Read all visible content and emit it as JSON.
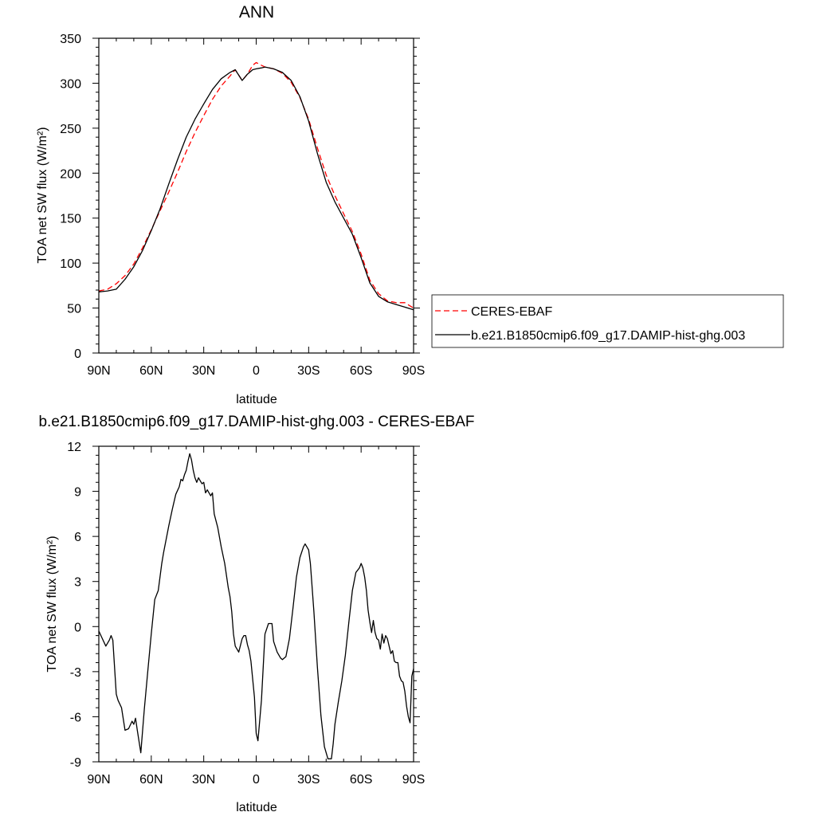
{
  "chart_data": [
    {
      "type": "line",
      "title": "ANN",
      "xlabel": "latitude",
      "ylabel": "TOA net SW flux (W/m²)",
      "xlim": [
        90,
        -90
      ],
      "ylim": [
        0,
        350
      ],
      "x_ticks": [
        90,
        60,
        30,
        0,
        -30,
        -60,
        -90
      ],
      "x_tick_labels": [
        "90N",
        "60N",
        "30N",
        "0",
        "30S",
        "60S",
        "90S"
      ],
      "y_ticks": [
        0,
        50,
        100,
        150,
        200,
        250,
        300,
        350
      ],
      "legend": "right",
      "series": [
        {
          "name": "CERES-EBAF",
          "color": "#ff0000",
          "dash": "dashed",
          "x": [
            90,
            85,
            80,
            75,
            70,
            65,
            60,
            55,
            50,
            45,
            40,
            35,
            30,
            25,
            20,
            15,
            12,
            8,
            5,
            2,
            0,
            -3,
            -5,
            -10,
            -15,
            -20,
            -25,
            -30,
            -35,
            -40,
            -45,
            -50,
            -55,
            -60,
            -65,
            -70,
            -75,
            -80,
            -85,
            -90
          ],
          "values": [
            69,
            71,
            77,
            86,
            99,
            117,
            137,
            158,
            179,
            201,
            224,
            245,
            264,
            282,
            297,
            308,
            315,
            303,
            310,
            320,
            323,
            320,
            318,
            316,
            311,
            301,
            284,
            260,
            228,
            198,
            175,
            155,
            135,
            110,
            81,
            66,
            58,
            56,
            56,
            50
          ]
        },
        {
          "name": "b.e21.B1850cmip6.f09_g17.DAMIP-hist-ghg.003",
          "color": "#000000",
          "dash": "solid",
          "x": [
            90,
            85,
            80,
            75,
            70,
            65,
            60,
            55,
            50,
            45,
            40,
            35,
            30,
            25,
            20,
            15,
            12,
            8,
            5,
            2,
            0,
            -3,
            -5,
            -10,
            -15,
            -20,
            -25,
            -30,
            -35,
            -40,
            -45,
            -50,
            -55,
            -60,
            -65,
            -70,
            -75,
            -80,
            -85,
            -90
          ],
          "values": [
            68,
            69,
            71,
            82,
            96,
            114,
            136,
            160,
            188,
            215,
            240,
            260,
            277,
            293,
            305,
            312,
            315,
            303,
            310,
            315,
            316,
            317,
            318,
            316,
            312,
            303,
            285,
            258,
            222,
            190,
            168,
            150,
            132,
            106,
            78,
            63,
            57,
            54,
            51,
            48
          ]
        }
      ]
    },
    {
      "type": "line",
      "title": "b.e21.B1850cmip6.f09_g17.DAMIP-hist-ghg.003 - CERES-EBAF",
      "xlabel": "latitude",
      "ylabel": "TOA net SW flux (W/m²)",
      "xlim": [
        90,
        -90
      ],
      "ylim": [
        -9,
        12
      ],
      "x_ticks": [
        90,
        60,
        30,
        0,
        -30,
        -60,
        -90
      ],
      "x_tick_labels": [
        "90N",
        "60N",
        "30N",
        "0",
        "30S",
        "60S",
        "90S"
      ],
      "y_ticks": [
        -9,
        -6,
        -3,
        0,
        3,
        6,
        9,
        12
      ],
      "series": [
        {
          "color": "#000000",
          "dash": "solid",
          "x": [
            90,
            88,
            86,
            84,
            83,
            82,
            80,
            79,
            77,
            75,
            73,
            71,
            70,
            69,
            68,
            66,
            64,
            62,
            60,
            58,
            56,
            54,
            53,
            50,
            48,
            46,
            44,
            43,
            42,
            41,
            40,
            39,
            38,
            37,
            36,
            35,
            34,
            33,
            32,
            31,
            30,
            29,
            28,
            26,
            25,
            24,
            22,
            20,
            18,
            16,
            15,
            14,
            13,
            12,
            10,
            8,
            7,
            6,
            5,
            4,
            3,
            1,
            0,
            -1,
            -3,
            -5,
            -7,
            -9,
            -10,
            -12,
            -14,
            -15,
            -17,
            -19,
            -21,
            -23,
            -25,
            -27,
            -28,
            -30,
            -31,
            -33,
            -35,
            -37,
            -39,
            -41,
            -43,
            -44,
            -45,
            -47,
            -49,
            -51,
            -53,
            -55,
            -57,
            -59,
            -60,
            -61,
            -62,
            -63,
            -64,
            -65,
            -66,
            -67,
            -68,
            -69,
            -70,
            -71,
            -72,
            -73,
            -74,
            -75,
            -76,
            -77,
            -78,
            -79,
            -80,
            -81,
            -82,
            -83,
            -84,
            -85,
            -86,
            -87,
            -88,
            -89,
            -90
          ],
          "values": [
            -0.3,
            -0.8,
            -1.3,
            -0.9,
            -0.6,
            -0.9,
            -4.5,
            -4.9,
            -5.4,
            -6.9,
            -6.8,
            -6.3,
            -6.5,
            -6.1,
            -6.9,
            -8.4,
            -5.5,
            -3.0,
            -0.5,
            1.8,
            2.4,
            4.2,
            4.9,
            6.7,
            7.8,
            8.8,
            9.3,
            9.8,
            9.7,
            10.1,
            10.4,
            11.0,
            11.5,
            11.1,
            10.4,
            9.9,
            9.6,
            9.9,
            9.7,
            9.5,
            9.6,
            8.9,
            9.1,
            8.7,
            8.9,
            7.5,
            6.6,
            5.3,
            4.2,
            2.6,
            2.0,
            1.0,
            -0.5,
            -1.3,
            -1.7,
            -0.8,
            -0.6,
            -0.6,
            -1.2,
            -1.6,
            -2.3,
            -4.7,
            -7.1,
            -7.6,
            -4.9,
            -0.5,
            0.2,
            0.2,
            -1.0,
            -1.7,
            -2.1,
            -2.2,
            -2.0,
            -0.8,
            1.2,
            3.3,
            4.6,
            5.3,
            5.5,
            5.1,
            4.2,
            1.0,
            -2.7,
            -5.9,
            -8.0,
            -8.8,
            -8.8,
            -7.8,
            -6.5,
            -5.0,
            -3.6,
            -1.9,
            0.3,
            2.4,
            3.6,
            3.9,
            4.2,
            3.9,
            3.3,
            2.4,
            1.1,
            0.3,
            -0.4,
            0.4,
            -0.4,
            -0.8,
            -0.9,
            -1.5,
            -0.5,
            -1.1,
            -0.6,
            -0.8,
            -1.3,
            -1.8,
            -1.6,
            -2.3,
            -2.4,
            -2.4,
            -3.3,
            -3.6,
            -3.7,
            -4.3,
            -5.3,
            -6.0,
            -6.4,
            -3.3,
            -2.8
          ]
        }
      ]
    }
  ]
}
